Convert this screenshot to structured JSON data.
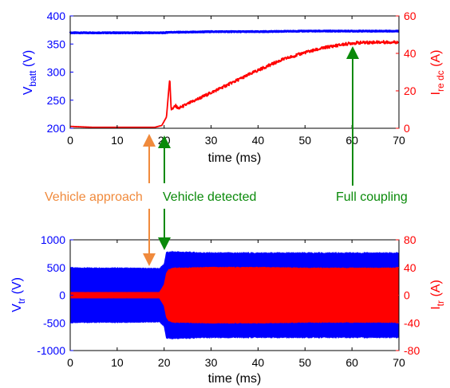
{
  "colors": {
    "blue": "#0000ff",
    "red": "#ff0000",
    "orange": "#f08a3c",
    "green": "#0a8a0a"
  },
  "annotations": {
    "approach": "Vehicle approach",
    "detected": "Vehicle detected",
    "coupling": "Full coupling"
  },
  "chart_data": [
    {
      "type": "line",
      "xlabel": "time (ms)",
      "xlim": [
        0,
        70
      ],
      "xticks": [
        0,
        10,
        20,
        30,
        40,
        50,
        60,
        70
      ],
      "left_axis": {
        "label_main": "V",
        "label_sub": "batt",
        "label_unit": " (V)",
        "ylim": [
          200,
          400
        ],
        "ticks": [
          200,
          250,
          300,
          350,
          400
        ]
      },
      "right_axis": {
        "label_main": "I",
        "label_sub": "re dc",
        "label_unit": " (A)",
        "ylim": [
          0,
          60
        ],
        "ticks": [
          0,
          20,
          40,
          60
        ]
      },
      "series": [
        {
          "axis": "left",
          "x": [
            0,
            10,
            20,
            21,
            25,
            30,
            40,
            50,
            60,
            70
          ],
          "y": [
            370,
            370,
            370,
            371,
            371,
            372,
            372,
            373,
            373,
            373
          ]
        },
        {
          "axis": "right",
          "x": [
            0,
            5,
            10,
            15,
            18,
            19.5,
            20.5,
            21.2,
            21.5,
            22,
            22.5,
            23,
            25,
            30,
            35,
            40,
            45,
            50,
            55,
            60,
            65,
            70
          ],
          "y": [
            1,
            0.5,
            0.5,
            0.5,
            0.5,
            1.5,
            6,
            27,
            10,
            11,
            12,
            10.5,
            13,
            19,
            25,
            31,
            36.5,
            40.5,
            43.5,
            45.5,
            46,
            46
          ]
        }
      ]
    },
    {
      "type": "area",
      "xlabel": "time (ms)",
      "xlim": [
        0,
        70
      ],
      "xticks": [
        0,
        10,
        20,
        30,
        40,
        50,
        60,
        70
      ],
      "left_axis": {
        "label_main": "V",
        "label_sub": "tr",
        "label_unit": " (V)",
        "ylim": [
          -1000,
          1000
        ],
        "ticks": [
          -1000,
          -500,
          0,
          500,
          1000
        ]
      },
      "right_axis": {
        "label_main": "I",
        "label_sub": "tr",
        "label_unit": " (A)",
        "ylim": [
          -80,
          80
        ],
        "ticks": [
          -80,
          -40,
          0,
          40,
          80
        ]
      },
      "series": [
        {
          "axis": "left",
          "x": [
            0,
            10,
            19,
            20,
            20.5,
            22,
            30,
            40,
            50,
            60,
            70
          ],
          "amplitude": [
            490,
            490,
            480,
            560,
            770,
            780,
            760,
            760,
            760,
            760,
            760
          ]
        },
        {
          "axis": "right",
          "x": [
            0,
            10,
            19,
            20,
            20.5,
            21,
            22,
            30,
            40,
            50,
            60,
            70
          ],
          "amplitude": [
            4,
            4,
            4,
            15,
            32,
            37,
            39,
            40,
            40,
            39,
            39,
            39
          ]
        }
      ]
    }
  ]
}
